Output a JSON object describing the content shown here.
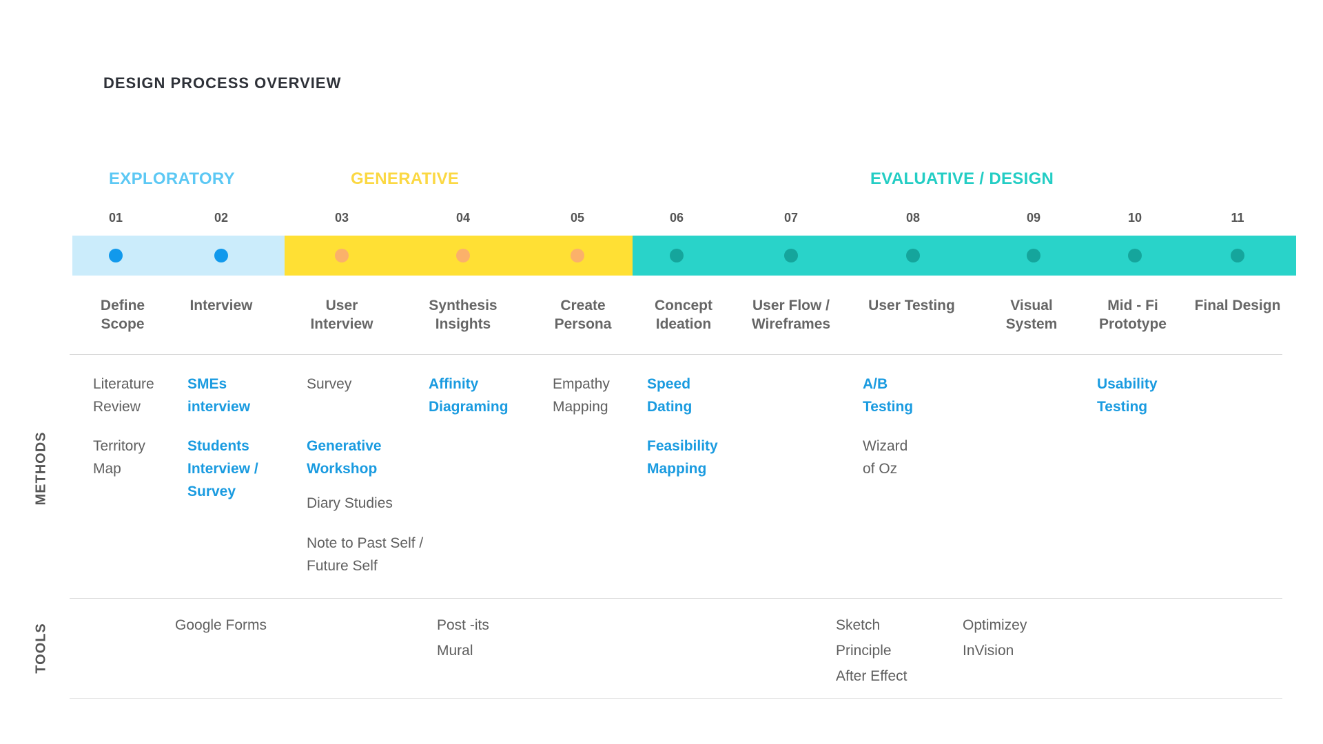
{
  "title": "DESIGN PROCESS OVERVIEW",
  "colors": {
    "exploratory_text": "#5cc8f4",
    "exploratory_band": "#cbecfb",
    "exploratory_dot": "#1199ec",
    "generative_text": "#fbd843",
    "generative_band": "#ffe034",
    "generative_dot": "#fbb16a",
    "evaluative_text": "#23cdc4",
    "evaluative_band": "#29d3c9",
    "evaluative_dot": "#15a59c",
    "highlight_text": "#1a9be0"
  },
  "phases": [
    {
      "name": "EXPLORATORY",
      "steps": [
        "01",
        "02"
      ]
    },
    {
      "name": "GENERATIVE",
      "steps": [
        "03",
        "04",
        "05"
      ]
    },
    {
      "name": "EVALUATIVE / DESIGN",
      "steps": [
        "06",
        "07",
        "08",
        "09",
        "10",
        "11"
      ]
    }
  ],
  "steps": [
    {
      "num": "01",
      "label": "Define\nScope",
      "phase": "exploratory"
    },
    {
      "num": "02",
      "label": "Interview",
      "phase": "exploratory"
    },
    {
      "num": "03",
      "label": "User\nInterview",
      "phase": "generative"
    },
    {
      "num": "04",
      "label": "Synthesis\nInsights",
      "phase": "generative"
    },
    {
      "num": "05",
      "label": "Create\nPersona",
      "phase": "generative"
    },
    {
      "num": "06",
      "label": "Concept\nIdeation",
      "phase": "evaluative"
    },
    {
      "num": "07",
      "label": "User Flow /\nWireframes",
      "phase": "evaluative"
    },
    {
      "num": "08",
      "label": "User Testing",
      "phase": "evaluative"
    },
    {
      "num": "09",
      "label": "Visual\nSystem",
      "phase": "evaluative"
    },
    {
      "num": "10",
      "label": "Mid - Fi\nPrototype",
      "phase": "evaluative"
    },
    {
      "num": "11",
      "label": "Final Design",
      "phase": "evaluative"
    }
  ],
  "methods_label": "METHODS",
  "tools_label": "TOOLS",
  "methods": [
    {
      "step": "01",
      "text": "Literature\nReview",
      "highlight": false
    },
    {
      "step": "01",
      "text": "Territory\nMap",
      "highlight": false
    },
    {
      "step": "02",
      "text": "SMEs\ninterview",
      "highlight": true
    },
    {
      "step": "02",
      "text": "Students\nInterview /\nSurvey",
      "highlight": true
    },
    {
      "step": "03",
      "text": "Survey",
      "highlight": false
    },
    {
      "step": "03",
      "text": "Generative\nWorkshop",
      "highlight": true
    },
    {
      "step": "03",
      "text": "Diary Studies",
      "highlight": false
    },
    {
      "step": "03",
      "text": "Note to Past Self /\nFuture Self",
      "highlight": false
    },
    {
      "step": "04",
      "text": "Affinity\nDiagraming",
      "highlight": true
    },
    {
      "step": "05",
      "text": "Empathy\nMapping",
      "highlight": false
    },
    {
      "step": "06",
      "text": "Speed\nDating",
      "highlight": true
    },
    {
      "step": "06",
      "text": "Feasibility\nMapping",
      "highlight": true
    },
    {
      "step": "08",
      "text": "A/B\nTesting",
      "highlight": true
    },
    {
      "step": "08",
      "text": "Wizard\nof Oz",
      "highlight": false
    },
    {
      "step": "10",
      "text": "Usability\nTesting",
      "highlight": true
    }
  ],
  "tools": [
    {
      "text": "Google Forms"
    },
    {
      "text": "Post -its\nMural"
    },
    {
      "text": "Sketch\nPrinciple\nAfter Effect"
    },
    {
      "text": "Optimizey\nInVision"
    }
  ]
}
